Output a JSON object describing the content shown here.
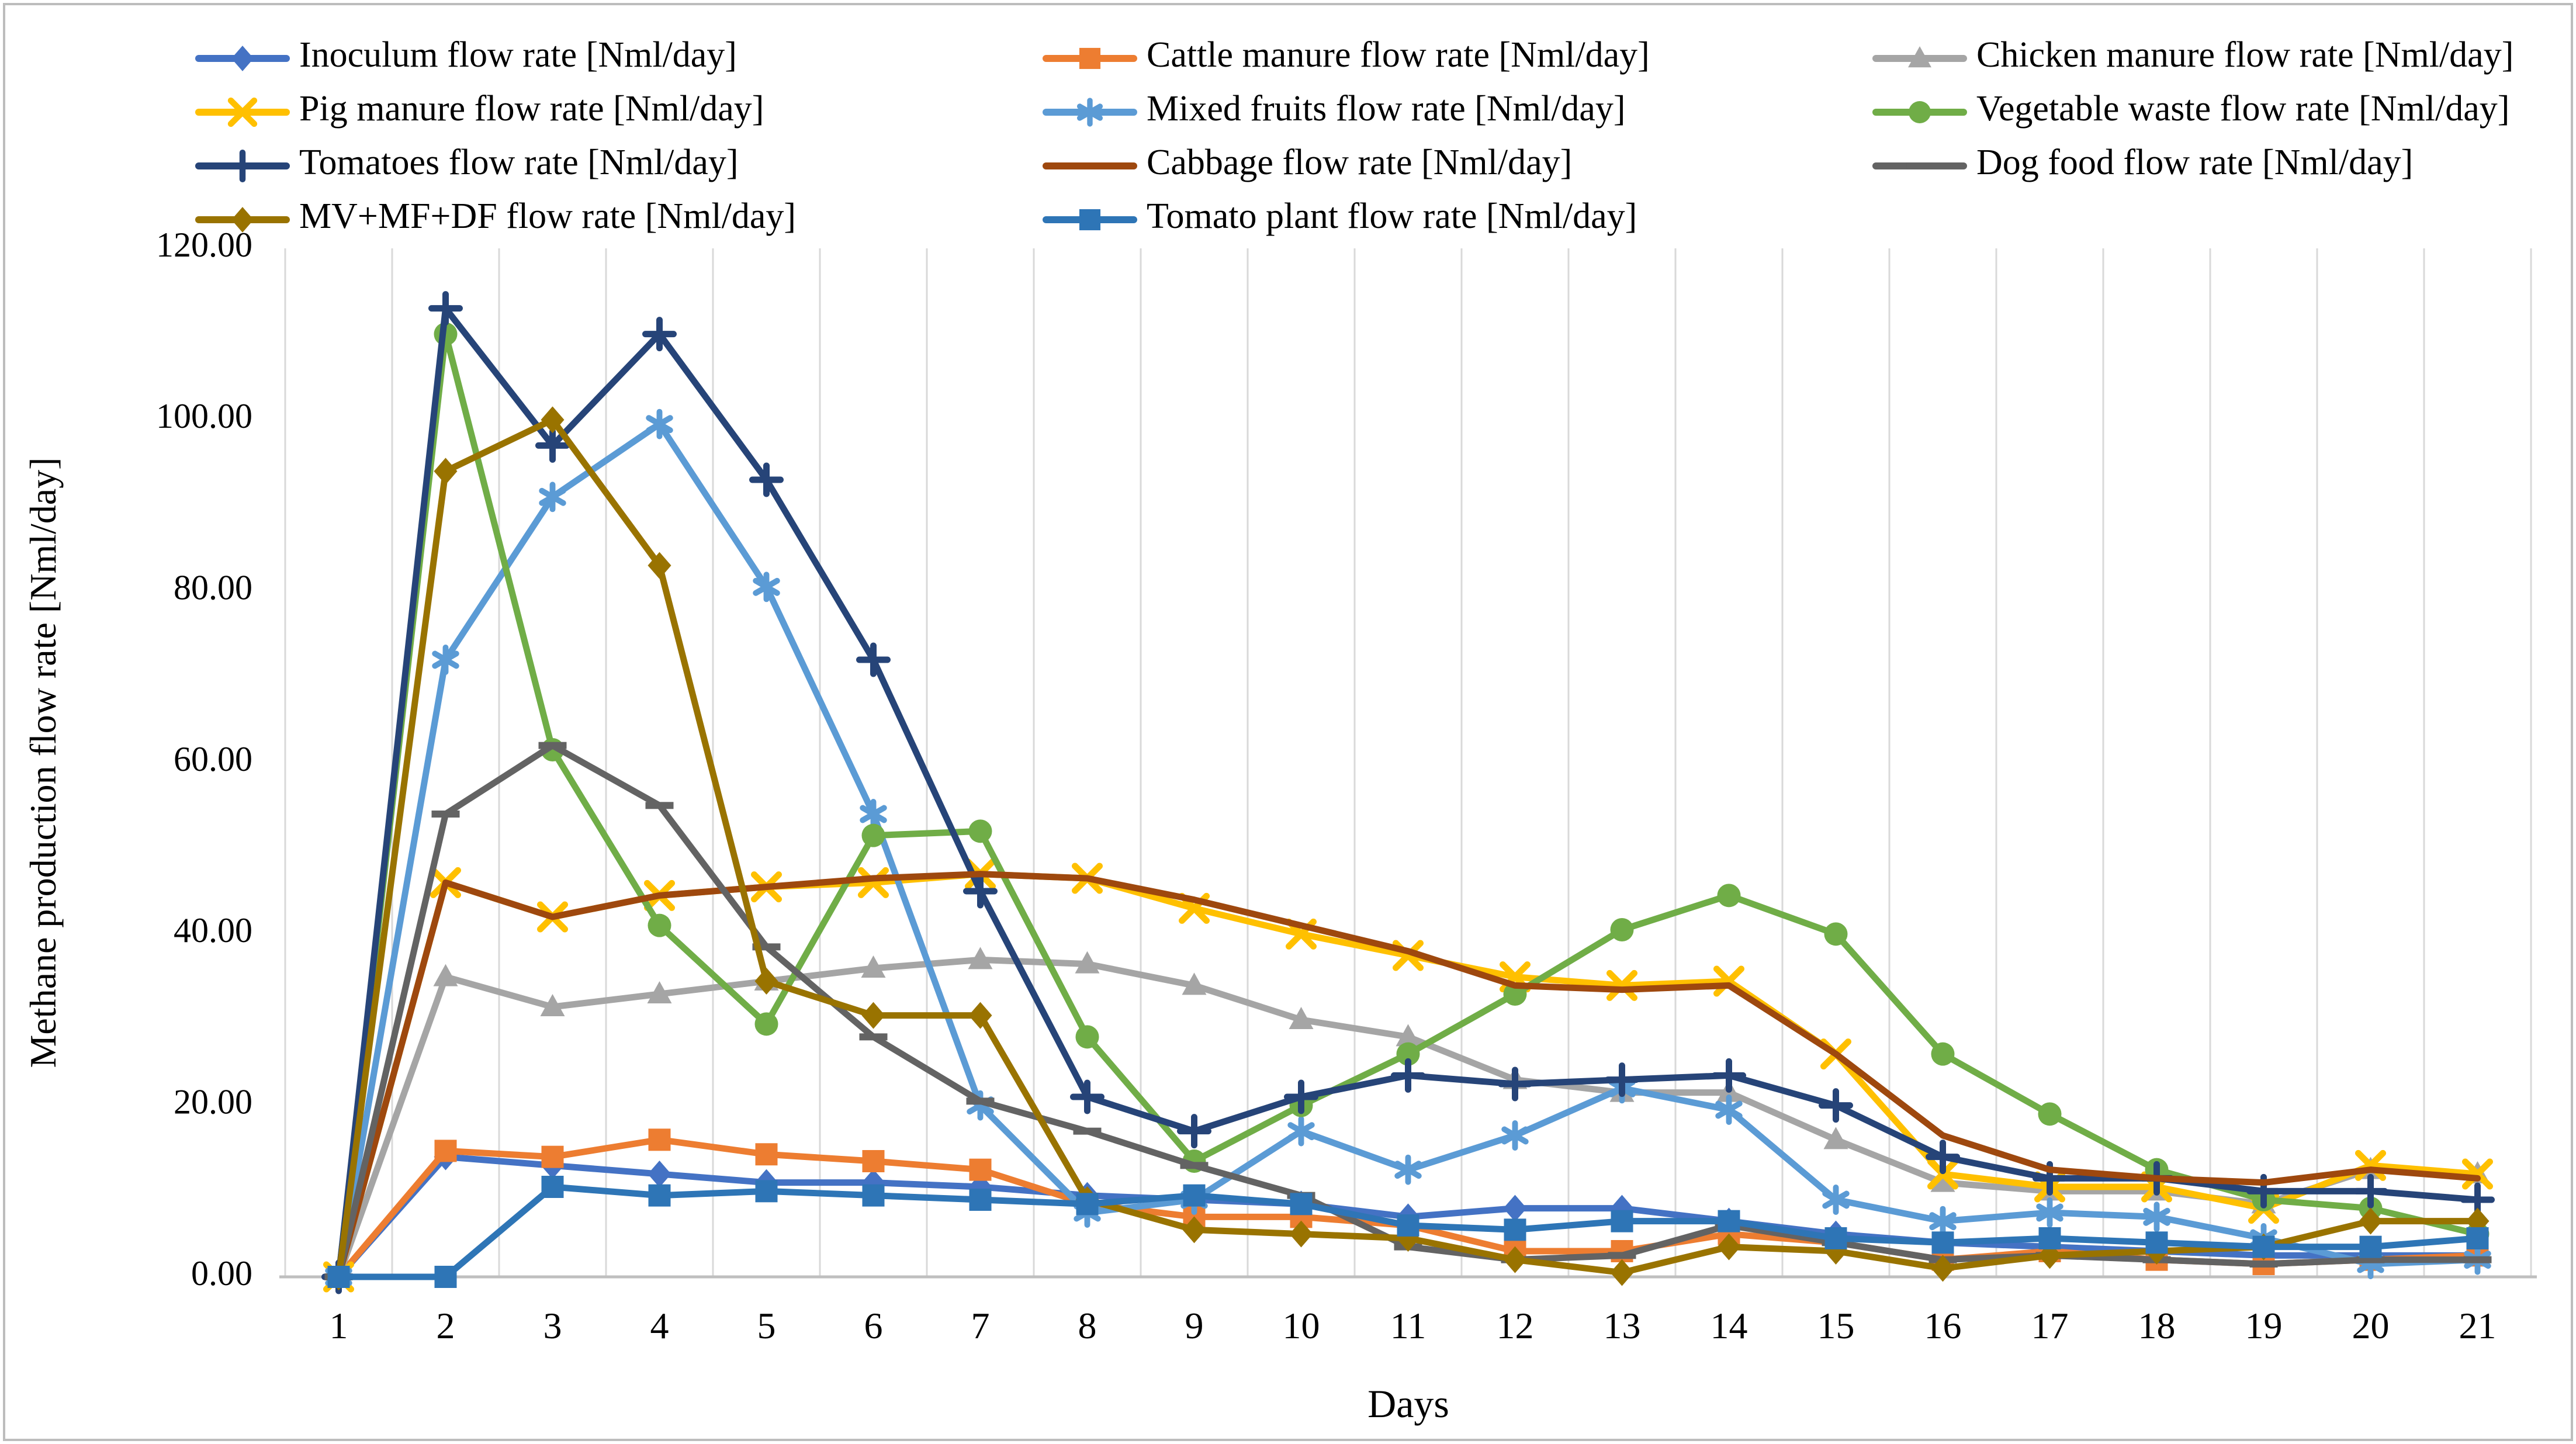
{
  "figure": {
    "border_color": "#bdbdbd",
    "background": "#ffffff",
    "gridline_color": "#d9d9d9",
    "axis_line_color": "#bfbfbf"
  },
  "chart_data": {
    "type": "line",
    "title": "",
    "xlabel": "Days",
    "ylabel": "Methane production flow rate [Nml/day]",
    "ylim": [
      0,
      120
    ],
    "grid": "vertical-only",
    "legend_position": "top",
    "y_ticks": [
      "0.00",
      "20.00",
      "40.00",
      "60.00",
      "80.00",
      "100.00",
      "120.00"
    ],
    "y_tick_values": [
      0,
      20,
      40,
      60,
      80,
      100,
      120
    ],
    "x": [
      1,
      2,
      3,
      4,
      5,
      6,
      7,
      8,
      9,
      10,
      11,
      12,
      13,
      14,
      15,
      16,
      17,
      18,
      19,
      20,
      21
    ],
    "x_labels": [
      "1",
      "2",
      "3",
      "4",
      "5",
      "6",
      "7",
      "8",
      "9",
      "10",
      "11",
      "12",
      "13",
      "14",
      "15",
      "16",
      "17",
      "18",
      "19",
      "20",
      "21"
    ],
    "series": [
      {
        "name": "Inoculum flow rate [Nml/day]",
        "color": "#4472C4",
        "marker": "diamond",
        "values": [
          0,
          14,
          13,
          12,
          11,
          11,
          10.5,
          9.5,
          9,
          8.5,
          7,
          8,
          8,
          6.5,
          5,
          4,
          3.5,
          3,
          2.5,
          2.5,
          2.5
        ]
      },
      {
        "name": "Cattle manure  flow rate [Nml/day]",
        "color": "#ED7D31",
        "marker": "square",
        "values": [
          0,
          14.7,
          14,
          16,
          14.3,
          13.5,
          12.5,
          8.5,
          7,
          7,
          6,
          3,
          3,
          5,
          4,
          2,
          3,
          2,
          1.5,
          2,
          2.5
        ]
      },
      {
        "name": "Chicken manure flow rate [Nml/day]",
        "color": "#A5A5A5",
        "marker": "triangle",
        "values": [
          0,
          35,
          31.5,
          33,
          34.5,
          36,
          37,
          36.5,
          34,
          30,
          28,
          23,
          21.5,
          21.5,
          16,
          11,
          10,
          10,
          8.5,
          12.5,
          12
        ]
      },
      {
        "name": "Pig manure flow rate [Nml/day]",
        "color": "#FFC000",
        "marker": "x",
        "values": [
          0,
          46,
          42,
          44.5,
          45.5,
          46,
          47,
          46.5,
          43,
          40,
          37.5,
          35,
          34,
          34.5,
          26,
          12,
          10.5,
          10.5,
          8,
          13,
          12
        ]
      },
      {
        "name": "Mixed fruits  flow rate [Nml/day]",
        "color": "#5B9BD5",
        "marker": "asterisk",
        "values": [
          0,
          72,
          91,
          99.5,
          80.5,
          54,
          20,
          7.5,
          9,
          17,
          12.5,
          16.5,
          22,
          19.5,
          9,
          6.5,
          7.5,
          7,
          4.5,
          1.5,
          2
        ]
      },
      {
        "name": "Vegetable waste flow rate  [Nml/day]",
        "color": "#70AD47",
        "marker": "circle",
        "values": [
          0,
          110,
          61.5,
          41,
          29.5,
          51.5,
          52,
          28,
          13.5,
          20,
          26,
          33,
          40.5,
          44.5,
          40,
          26,
          19,
          12.5,
          9,
          8,
          5
        ]
      },
      {
        "name": "Tomatoes flow rate [Nml/day]",
        "color": "#264478",
        "marker": "plus",
        "values": [
          0,
          113,
          97,
          110,
          93,
          72,
          45,
          21,
          17,
          21,
          23.5,
          22.5,
          23,
          23.5,
          20,
          14,
          11.5,
          11.5,
          10,
          10,
          9
        ]
      },
      {
        "name": "Cabbage flow rate [Nml/day]",
        "color": "#9E480E",
        "marker": "none",
        "values": [
          0,
          46,
          42,
          44.5,
          45.5,
          46.5,
          47,
          46.5,
          44,
          41,
          38,
          34,
          33.5,
          34,
          26,
          16.5,
          12.5,
          11.5,
          11,
          12.5,
          11.5
        ]
      },
      {
        "name": "Dog food flow rate [Nml/day]",
        "color": "#636363",
        "marker": "dash",
        "values": [
          0,
          54,
          62,
          55,
          38.5,
          28,
          20.5,
          17,
          13,
          9.5,
          3.5,
          2,
          2.5,
          6,
          4,
          2,
          2.5,
          2,
          1.5,
          2,
          2
        ]
      },
      {
        "name": "MV+MF+DF  flow rate [Nml/day]",
        "color": "#997300",
        "marker": "diamond",
        "values": [
          0,
          94,
          100,
          83,
          34.5,
          30.5,
          30.5,
          9,
          5.5,
          5,
          4.5,
          2,
          0.5,
          3.5,
          3,
          1,
          2.5,
          3,
          3.5,
          6.5,
          6.5
        ]
      },
      {
        "name": "Tomato plant flow rate [Nml/day]",
        "color": "#2E75B6",
        "marker": "square",
        "values": [
          0,
          0,
          10.5,
          9.5,
          10,
          9.5,
          9,
          8.5,
          9.5,
          8.5,
          6,
          5.5,
          6.5,
          6.5,
          4.5,
          4,
          4.5,
          4,
          3.5,
          3.5,
          4.5
        ]
      }
    ],
    "legend_layout": {
      "columns": 3,
      "order": "row-major"
    }
  }
}
